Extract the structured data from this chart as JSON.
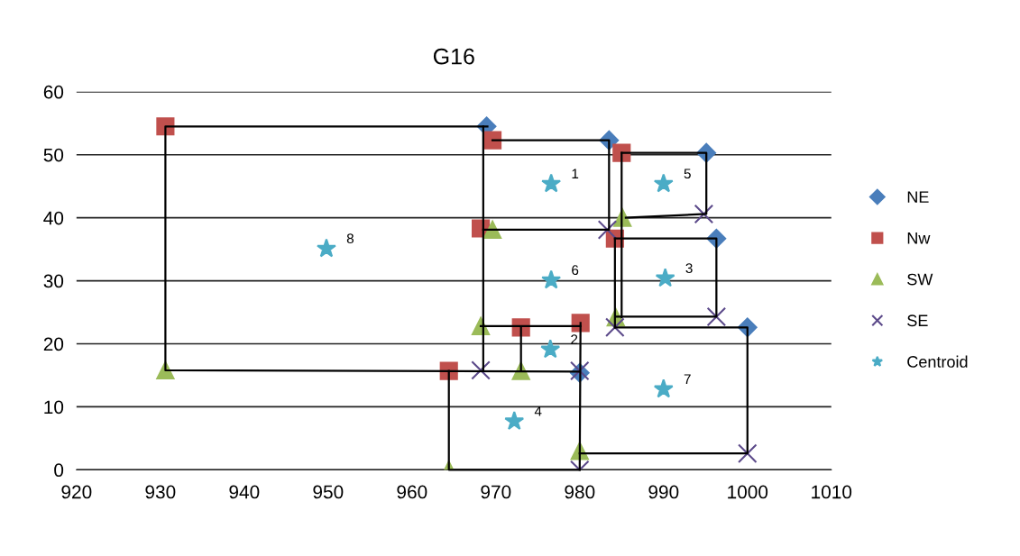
{
  "chart_data": {
    "type": "scatter",
    "title": "G16",
    "xlim": [
      920,
      1010
    ],
    "xticks": [
      920,
      930,
      940,
      950,
      960,
      970,
      980,
      990,
      1000,
      1010
    ],
    "ylim": [
      0,
      60
    ],
    "yticks": [
      0,
      10,
      20,
      30,
      40,
      50,
      60
    ],
    "grid": "y",
    "legend": "right",
    "series": [
      {
        "type": "line",
        "color": "#000000",
        "marker": "none",
        "line_style": "solid",
        "x": [
          969,
          930.6,
          930.6,
          980
        ],
        "values": [
          54.5,
          54.5,
          15.8,
          15.6
        ]
      },
      {
        "type": "line",
        "color": "#000000",
        "marker": "none",
        "line_style": "solid",
        "x": [
          968.5,
          968.5
        ],
        "values": [
          54.5,
          15.8
        ]
      },
      {
        "type": "line",
        "color": "#000000",
        "marker": "none",
        "line_style": "solid",
        "x": [
          969.6,
          983.5,
          983.5,
          968.5
        ],
        "values": [
          52.3,
          52.3,
          38.1,
          38.1
        ]
      },
      {
        "type": "line",
        "color": "#000000",
        "marker": "none",
        "line_style": "solid",
        "x": [
          985,
          995.1,
          995.1,
          985.5
        ],
        "values": [
          50.3,
          50.3,
          40.6,
          40
        ]
      },
      {
        "type": "line",
        "color": "#000000",
        "marker": "none",
        "line_style": "solid",
        "x": [
          985,
          985
        ],
        "values": [
          50.3,
          24.2
        ]
      },
      {
        "type": "line",
        "color": "#000000",
        "marker": "none",
        "line_style": "solid",
        "x": [
          984.2,
          996.3,
          996.3,
          984.3
        ],
        "values": [
          36.7,
          36.7,
          24.3,
          24.3
        ]
      },
      {
        "type": "line",
        "color": "#000000",
        "marker": "none",
        "line_style": "solid",
        "x": [
          984.2,
          984.2
        ],
        "values": [
          36.7,
          22.6
        ]
      },
      {
        "type": "line",
        "color": "#000000",
        "marker": "none",
        "line_style": "solid",
        "x": [
          980.1,
          980
        ],
        "values": [
          23.3,
          0
        ]
      },
      {
        "type": "line",
        "color": "#000000",
        "marker": "none",
        "line_style": "solid",
        "x": [
          984.2,
          1000,
          1000,
          980
        ],
        "values": [
          22.6,
          22.6,
          2.6,
          2.6
        ]
      },
      {
        "type": "line",
        "color": "#000000",
        "marker": "none",
        "line_style": "solid",
        "x": [
          968.2,
          980.1
        ],
        "values": [
          22.8,
          22.8
        ]
      },
      {
        "type": "line",
        "color": "#000000",
        "marker": "none",
        "line_style": "solid",
        "x": [
          973,
          973
        ],
        "values": [
          22.6,
          15.7
        ]
      },
      {
        "type": "line",
        "color": "#000000",
        "marker": "none",
        "line_style": "solid",
        "x": [
          964.4,
          964.4,
          980
        ],
        "values": [
          15.7,
          0,
          0
        ]
      },
      {
        "name": "NE",
        "color": "#4a7ebb",
        "marker": "diamond",
        "x": [
          968.9,
          983.5,
          995.1,
          996.3,
          1000,
          980
        ],
        "values": [
          54.5,
          52.3,
          50.3,
          36.7,
          22.6,
          15.4
        ]
      },
      {
        "name": "Nw",
        "color": "#c0504d",
        "marker": "square",
        "x": [
          930.6,
          969.6,
          985,
          968.2,
          984.2,
          973,
          980.1,
          964.4
        ],
        "values": [
          54.5,
          52.3,
          50.3,
          38.3,
          36.7,
          22.6,
          23.3,
          15.7
        ]
      },
      {
        "name": "SW",
        "color": "#9bbb59",
        "marker": "triangle",
        "x": [
          930.6,
          969.6,
          985.1,
          968.2,
          984.3,
          973,
          964.4,
          980
        ],
        "values": [
          15.8,
          38.1,
          40,
          22.8,
          24.2,
          15.7,
          0,
          3
        ]
      },
      {
        "name": "SE",
        "color": "#5c4a8a",
        "marker": "cross",
        "x": [
          968.2,
          983.3,
          994.8,
          996.3,
          984.2,
          980,
          980,
          1000
        ],
        "values": [
          15.8,
          38.1,
          40.6,
          24.3,
          22.6,
          15.7,
          0,
          2.6
        ]
      },
      {
        "name": "Centroid",
        "color": "#4bacc6",
        "marker": "star",
        "x": [
          976.6,
          990,
          949.8,
          976.6,
          990.2,
          976.5,
          990,
          972.2
        ],
        "values": [
          45.4,
          45.4,
          35.1,
          30.1,
          30.4,
          19.1,
          12.8,
          7.7
        ]
      }
    ],
    "annotations": [
      {
        "text": "1",
        "x": 976.6,
        "y": 45.4
      },
      {
        "text": "5",
        "x": 990,
        "y": 45.4
      },
      {
        "text": "8",
        "x": 949.8,
        "y": 35.1
      },
      {
        "text": "6",
        "x": 976.6,
        "y": 30.1
      },
      {
        "text": "3",
        "x": 990.2,
        "y": 30.4
      },
      {
        "text": "2",
        "x": 976.5,
        "y": 19.1
      },
      {
        "text": "7",
        "x": 990,
        "y": 12.8
      },
      {
        "text": "4",
        "x": 972.2,
        "y": 7.7
      }
    ]
  }
}
